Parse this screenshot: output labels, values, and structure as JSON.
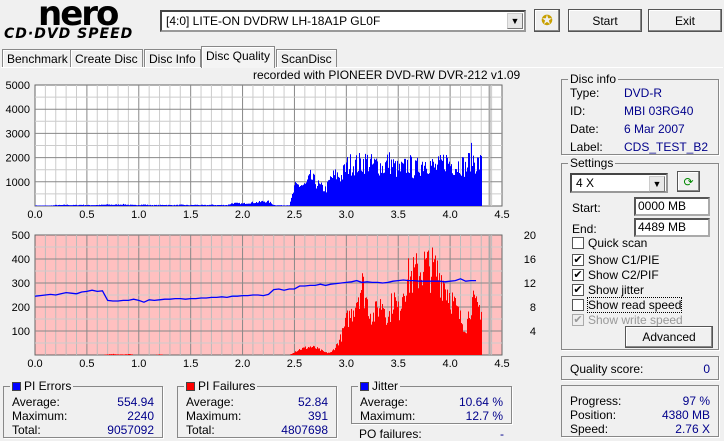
{
  "app": {
    "logo_top": "nero",
    "logo_bottom": "CD·DVD SPEED"
  },
  "toolbar": {
    "drive": "[4:0]  LITE-ON DVDRW LH-18A1P GL0F",
    "start_label": "Start",
    "exit_label": "Exit"
  },
  "tabs": [
    "Benchmark",
    "Create Disc",
    "Disc Info",
    "Disc Quality",
    "ScanDisc"
  ],
  "active_tab": "Disc Quality",
  "chart_caption": "recorded with PIONEER DVD-RW  DVR-212  v1.09",
  "colors": {
    "pie": "#0000ff",
    "pif": "#ff0000",
    "jitter": "#0000ff",
    "pif_bg": "#ffc0c0",
    "value_text": "#00008b"
  },
  "chart_data": [
    {
      "type": "bar",
      "name": "PI Errors",
      "xlim": [
        0,
        4.5
      ],
      "ylim": [
        0,
        5000
      ],
      "x_ticks": [
        "0.0",
        "0.5",
        "1.0",
        "1.5",
        "2.0",
        "2.5",
        "3.0",
        "3.5",
        "4.0",
        "4.5"
      ],
      "y_ticks": [
        "5000",
        "4000",
        "3000",
        "2000",
        "1000"
      ],
      "x_step": 0.05,
      "values": [
        20,
        20,
        20,
        20,
        40,
        40,
        50,
        40,
        40,
        50,
        40,
        40,
        40,
        50,
        60,
        50,
        60,
        70,
        50,
        40,
        50,
        60,
        40,
        40,
        40,
        50,
        40,
        40,
        50,
        40,
        40,
        50,
        40,
        40,
        50,
        40,
        40,
        40,
        120,
        110,
        100,
        130,
        150,
        160,
        200,
        180,
        40,
        30,
        30,
        40,
        800,
        900,
        850,
        1200,
        1000,
        800,
        700,
        1200,
        1300,
        1250,
        1700,
        1800,
        1750,
        1850,
        1900,
        1700,
        1800,
        1600,
        1900,
        1700,
        1500,
        1600,
        1800,
        1500,
        1700,
        1900,
        1800,
        1600,
        1700,
        1950,
        1800,
        1700,
        1800,
        1600,
        2100,
        1800
      ]
    },
    {
      "type": "bar+line",
      "name": "PI Failures / Jitter",
      "xlim": [
        0,
        4.5
      ],
      "ylim": [
        0,
        500
      ],
      "y2lim": [
        0,
        20
      ],
      "x_ticks": [
        "0.0",
        "0.5",
        "1.0",
        "1.5",
        "2.0",
        "2.5",
        "3.0",
        "3.5",
        "4.0",
        "4.5"
      ],
      "y_ticks": [
        "500",
        "400",
        "300",
        "200",
        "100"
      ],
      "y2_ticks": [
        "20",
        "16",
        "12",
        "8",
        "4"
      ],
      "x_step": 0.05,
      "values": [
        1,
        1,
        1,
        1,
        1,
        1,
        1,
        1,
        1,
        1,
        1,
        1,
        1,
        1,
        3,
        4,
        3,
        2,
        4,
        1,
        1,
        1,
        1,
        1,
        2,
        1,
        1,
        1,
        1,
        1,
        1,
        1,
        1,
        1,
        1,
        1,
        1,
        1,
        1,
        1,
        1,
        1,
        1,
        1,
        1,
        1,
        1,
        1,
        1,
        1,
        15,
        25,
        30,
        35,
        30,
        20,
        10,
        10,
        40,
        80,
        150,
        180,
        250,
        300,
        220,
        160,
        200,
        230,
        150,
        250,
        180,
        300,
        330,
        340,
        360,
        380,
        370,
        360,
        340,
        300,
        250,
        200,
        150,
        120,
        230,
        200
      ],
      "jitter": [
        9.8,
        9.9,
        10.0,
        10.1,
        10.0,
        10.2,
        10.4,
        10.3,
        10.2,
        10.5,
        10.6,
        10.8,
        10.6,
        10.7,
        9.1,
        9.0,
        9.0,
        9.1,
        9.1,
        9.3,
        9.1,
        8.8,
        9.2,
        9.1,
        9.2,
        9.3,
        9.3,
        9.4,
        9.4,
        9.3,
        9.4,
        9.4,
        9.5,
        9.5,
        9.6,
        9.6,
        9.7,
        9.6,
        9.8,
        9.8,
        9.9,
        9.9,
        10.0,
        10.0,
        9.9,
        10.1,
        10.9,
        11.0,
        10.8,
        11.0,
        11.0,
        11.5,
        11.5,
        11.6,
        11.6,
        11.8,
        11.6,
        11.8,
        11.9,
        12.0,
        12.1,
        12.2,
        12.4,
        12.1,
        12.2,
        12.1,
        12.1,
        12.0,
        12.1,
        12.3,
        12.4,
        12.5,
        12.4,
        12.4,
        12.3,
        12.3,
        12.3,
        12.3,
        12.3,
        12.2,
        12.3,
        12.4,
        12.7,
        12.3,
        12.4,
        12.4
      ]
    }
  ],
  "disc_info": {
    "title": "Disc info",
    "rows": [
      {
        "label": "Type:",
        "value": "DVD-R"
      },
      {
        "label": "ID:",
        "value": "MBI 03RG40"
      },
      {
        "label": "Date:",
        "value": "6 Mar 2007"
      },
      {
        "label": "Label:",
        "value": "CDS_TEST_B2"
      }
    ]
  },
  "settings": {
    "title": "Settings",
    "speed": "4 X",
    "start_label": "Start:",
    "start_value": "0000 MB",
    "end_label": "End:",
    "end_value": "4489 MB",
    "checkboxes": [
      {
        "label": "Quick scan",
        "checked": false
      },
      {
        "label": "Show C1/PIE",
        "checked": true
      },
      {
        "label": "Show C2/PIF",
        "checked": true
      },
      {
        "label": "Show jitter",
        "checked": true
      },
      {
        "label": "Show read speed",
        "checked": false
      },
      {
        "label": "Show write speed",
        "checked": true,
        "disabled": true
      }
    ],
    "advanced_label": "Advanced"
  },
  "quality": {
    "label": "Quality score:",
    "value": "0"
  },
  "progress": {
    "rows": [
      {
        "label": "Progress:",
        "value": "97 %"
      },
      {
        "label": "Position:",
        "value": "4380 MB"
      },
      {
        "label": "Speed:",
        "value": "2.76 X"
      }
    ]
  },
  "pi_errors": {
    "title": "PI Errors",
    "rows": [
      {
        "label": "Average:",
        "value": "554.94"
      },
      {
        "label": "Maximum:",
        "value": "2240"
      },
      {
        "label": "Total:",
        "value": "9057092"
      }
    ]
  },
  "pi_failures": {
    "title": "PI Failures",
    "rows": [
      {
        "label": "Average:",
        "value": "52.84"
      },
      {
        "label": "Maximum:",
        "value": "391"
      },
      {
        "label": "Total:",
        "value": "4807698"
      }
    ]
  },
  "jitter": {
    "title": "Jitter",
    "rows": [
      {
        "label": "Average:",
        "value": "10.64 %"
      },
      {
        "label": "Maximum:",
        "value": "12.7 %"
      }
    ]
  },
  "po_failures": {
    "label": "PO failures:",
    "value": "-"
  }
}
